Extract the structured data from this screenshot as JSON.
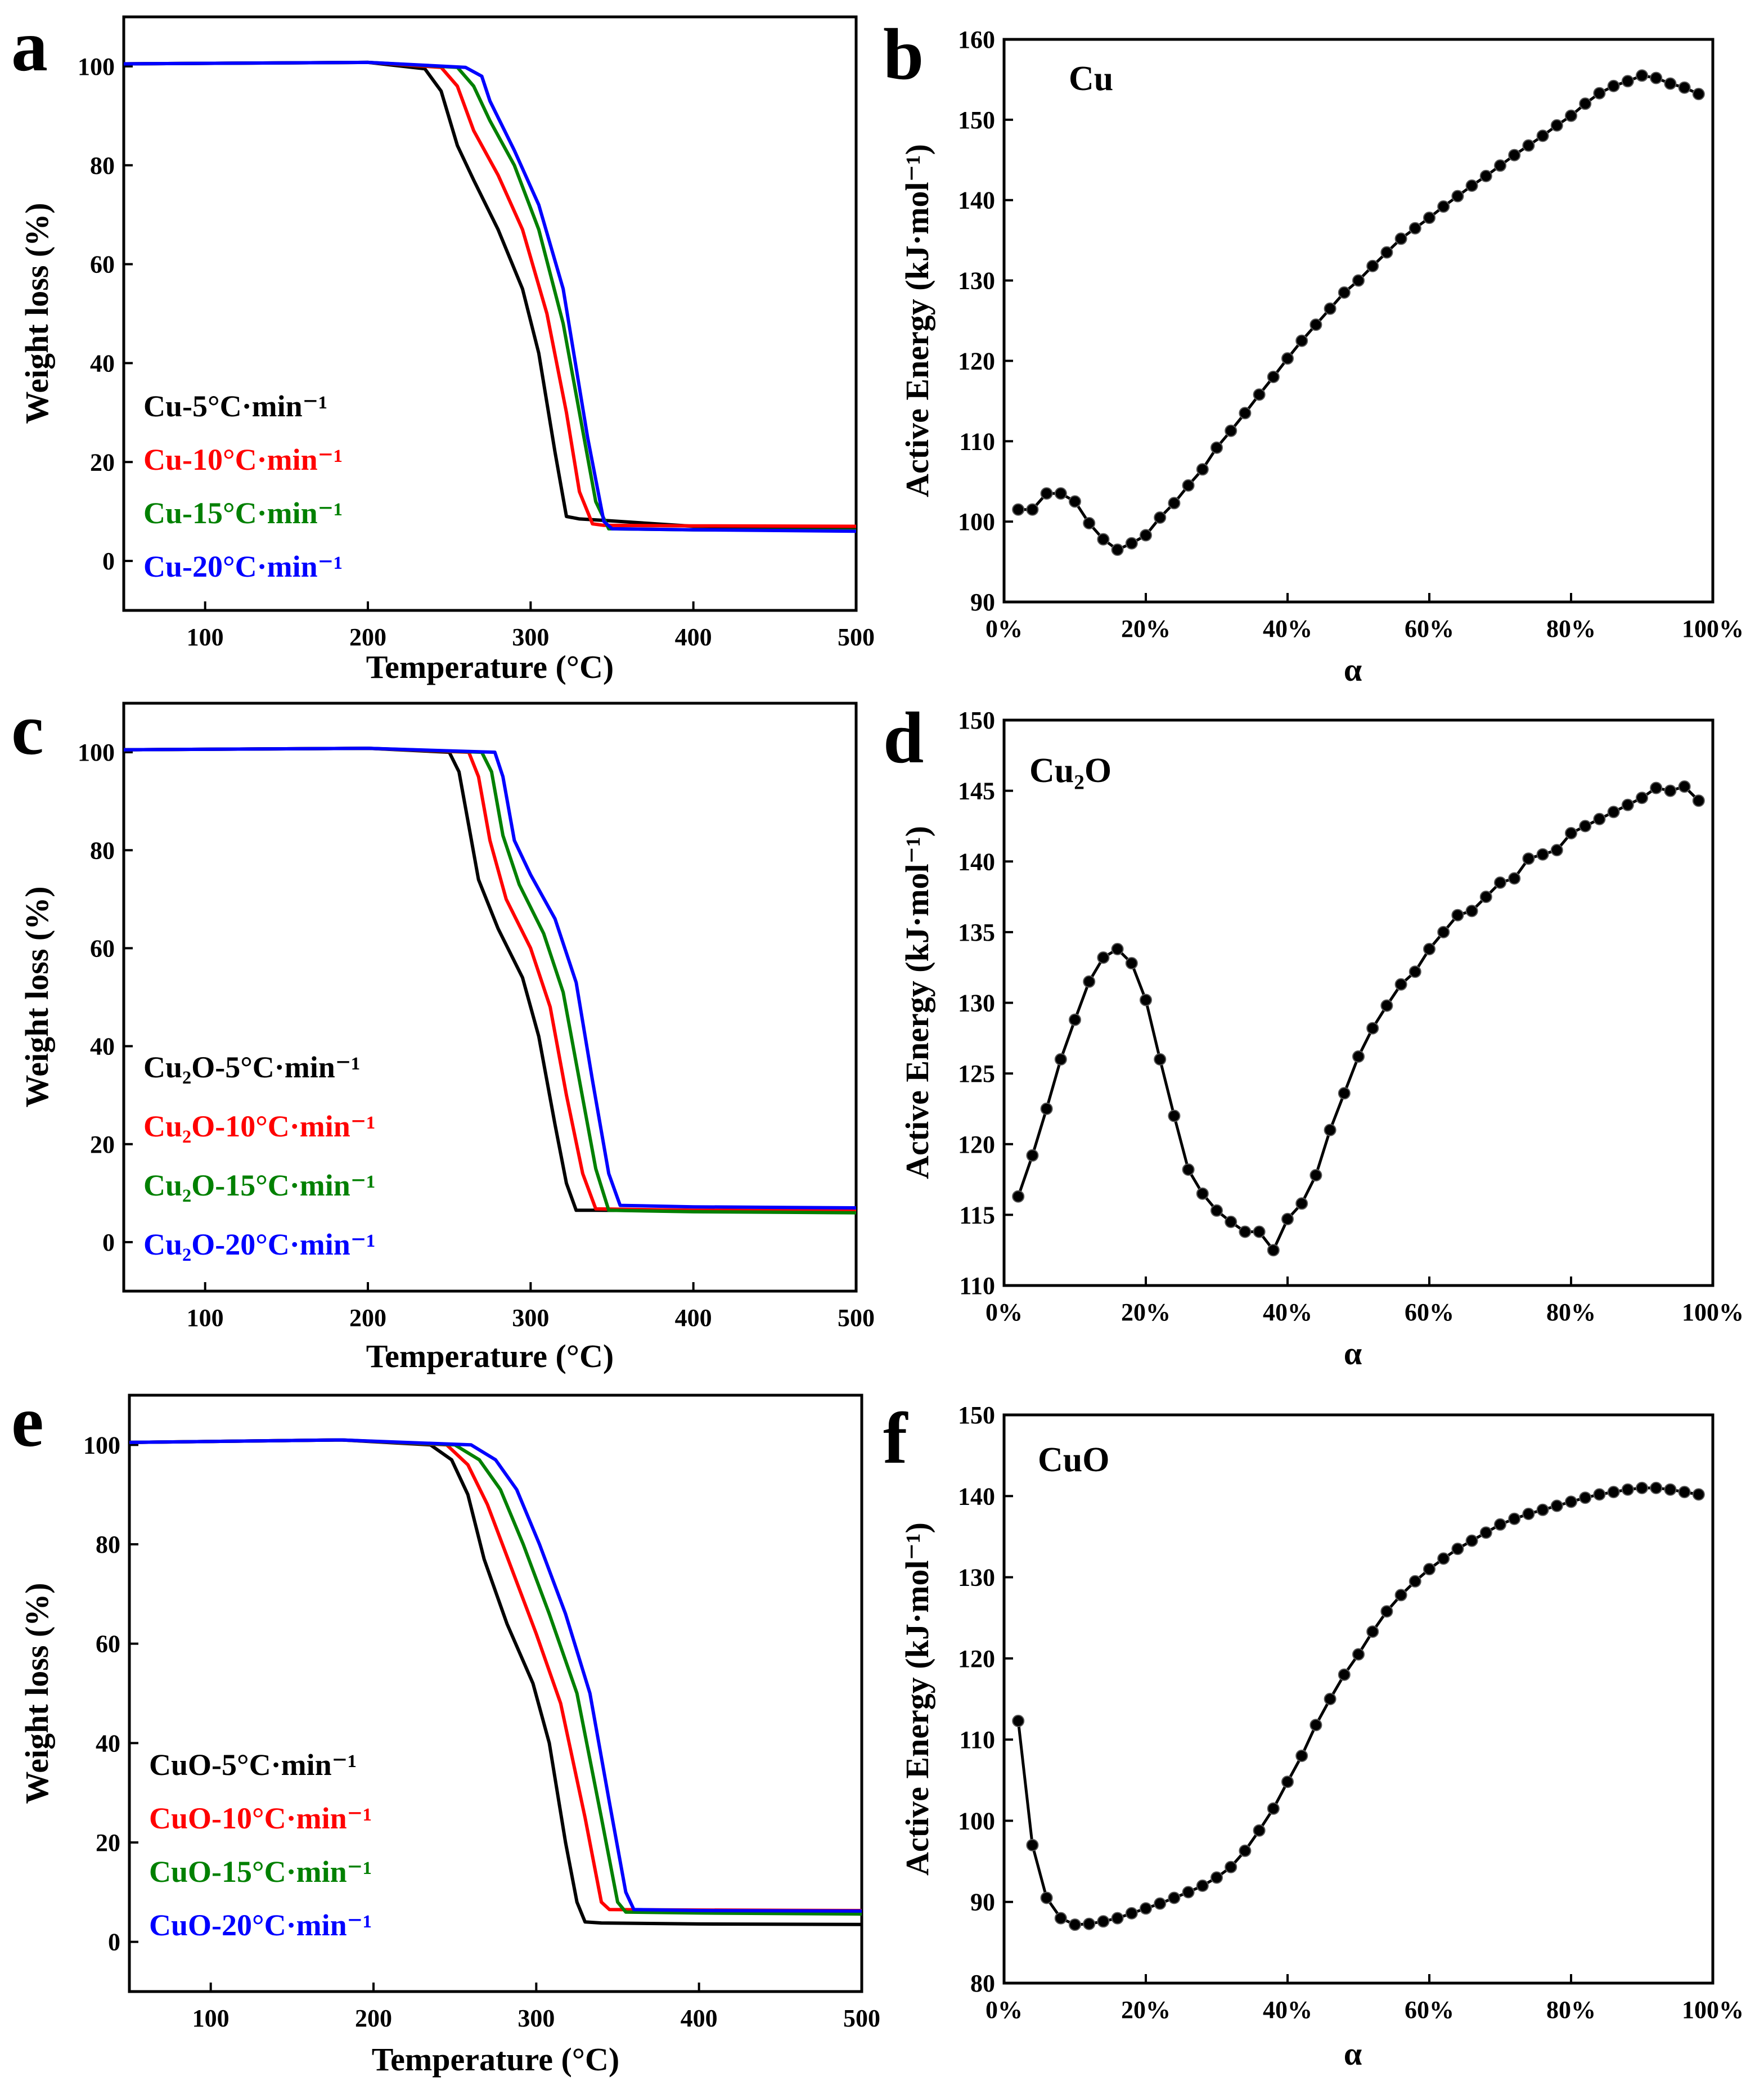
{
  "colors": {
    "rate5": "#000000",
    "rate10": "#ff0000",
    "rate15": "#008000",
    "rate20": "#0000ff"
  },
  "chart_data": [
    {
      "panel": "a",
      "type": "line",
      "xlabel": "Temperature (°C)",
      "ylabel": "Weight loss (%)",
      "xlim": [
        50,
        500
      ],
      "ylim": [
        -10,
        110
      ],
      "xticks": [
        100,
        200,
        300,
        400,
        500
      ],
      "yticks": [
        0,
        20,
        40,
        60,
        80,
        100
      ],
      "legend_position": "lower-left",
      "series": [
        {
          "name": "Cu-5°C·min⁻¹",
          "color": "#000000",
          "x": [
            50,
            200,
            235,
            245,
            255,
            265,
            280,
            295,
            305,
            315,
            322,
            330,
            345,
            400,
            500
          ],
          "y": [
            100.5,
            100.8,
            99.5,
            95,
            84,
            77,
            67,
            55,
            42,
            22,
            9,
            8.5,
            8.2,
            7,
            6.5
          ]
        },
        {
          "name": "Cu-10°C·min⁻¹",
          "color": "#ff0000",
          "x": [
            50,
            200,
            245,
            255,
            265,
            280,
            295,
            310,
            322,
            330,
            338,
            345,
            400,
            500
          ],
          "y": [
            100.5,
            100.8,
            99.8,
            96,
            87,
            78,
            67,
            50,
            30,
            14,
            7.5,
            7.2,
            7.1,
            7
          ]
        },
        {
          "name": "Cu-15°C·min⁻¹",
          "color": "#008000",
          "x": [
            50,
            200,
            255,
            265,
            275,
            290,
            305,
            320,
            330,
            340,
            348,
            400,
            500
          ],
          "y": [
            100.5,
            100.8,
            99.8,
            96,
            89,
            80,
            67,
            48,
            30,
            12,
            6.5,
            6.3,
            6.2
          ]
        },
        {
          "name": "Cu-20°C·min⁻¹",
          "color": "#0000ff",
          "x": [
            50,
            200,
            260,
            270,
            275,
            290,
            305,
            320,
            335,
            345,
            350,
            400,
            500
          ],
          "y": [
            100.5,
            100.8,
            99.8,
            98,
            93,
            83,
            72,
            55,
            25,
            8,
            6.5,
            6.3,
            6
          ]
        }
      ]
    },
    {
      "panel": "b",
      "type": "scatter",
      "annotation": "Cu",
      "xlabel": "α",
      "ylabel": "Active Energy (kJ·mol⁻¹)",
      "xlim": [
        0,
        100
      ],
      "ylim": [
        90,
        160
      ],
      "xticks": [
        "0%",
        "20%",
        "40%",
        "60%",
        "80%",
        "100%"
      ],
      "yticks": [
        90,
        100,
        110,
        120,
        130,
        140,
        150,
        160
      ],
      "x": [
        2,
        4,
        6,
        8,
        10,
        12,
        14,
        16,
        18,
        20,
        22,
        24,
        26,
        28,
        30,
        32,
        34,
        36,
        38,
        40,
        42,
        44,
        46,
        48,
        50,
        52,
        54,
        56,
        58,
        60,
        62,
        64,
        66,
        68,
        70,
        72,
        74,
        76,
        78,
        80,
        82,
        84,
        86,
        88,
        90,
        92,
        94,
        96,
        98
      ],
      "y": [
        101.5,
        101.5,
        103.5,
        103.5,
        102.5,
        99.8,
        97.8,
        96.5,
        97.3,
        98.3,
        100.5,
        102.3,
        104.5,
        106.5,
        109.2,
        111.3,
        113.5,
        115.8,
        118.0,
        120.3,
        122.5,
        124.5,
        126.5,
        128.5,
        130.0,
        131.8,
        133.5,
        135.2,
        136.5,
        137.8,
        139.2,
        140.5,
        141.8,
        143.0,
        144.3,
        145.6,
        146.8,
        148.0,
        149.3,
        150.5,
        152.0,
        153.3,
        154.2,
        154.8,
        155.5,
        155.2,
        154.5,
        154.0,
        153.2
      ]
    },
    {
      "panel": "c",
      "type": "line",
      "xlabel": "Temperature (°C)",
      "ylabel": "Weight loss (%)",
      "xlim": [
        50,
        500
      ],
      "ylim": [
        -10,
        110
      ],
      "xticks": [
        100,
        200,
        300,
        400,
        500
      ],
      "yticks": [
        0,
        20,
        40,
        60,
        80,
        100
      ],
      "legend_position": "lower-left",
      "series": [
        {
          "name": "Cu₂O-5°C·min⁻¹",
          "color": "#000000",
          "x": [
            50,
            200,
            250,
            256,
            262,
            268,
            280,
            295,
            305,
            315,
            322,
            328,
            340,
            400,
            500
          ],
          "y": [
            100.5,
            100.8,
            100,
            96,
            85,
            74,
            64,
            54,
            42,
            24,
            12,
            6.5,
            6.5,
            6.4,
            6.3
          ]
        },
        {
          "name": "Cu₂O-10°C·min⁻¹",
          "color": "#ff0000",
          "x": [
            50,
            200,
            262,
            268,
            275,
            285,
            300,
            312,
            322,
            332,
            340,
            400,
            500
          ],
          "y": [
            100.5,
            100.8,
            100,
            95,
            82,
            70,
            60,
            48,
            30,
            14,
            6.8,
            6.5,
            6.4
          ]
        },
        {
          "name": "Cu₂O-15°C·min⁻¹",
          "color": "#008000",
          "x": [
            50,
            200,
            270,
            276,
            283,
            293,
            308,
            320,
            330,
            340,
            348,
            400,
            500
          ],
          "y": [
            100.5,
            100.8,
            100,
            96,
            83,
            73,
            63,
            51,
            33,
            15,
            6.5,
            6.2,
            6
          ]
        },
        {
          "name": "Cu₂O-20°C·min⁻¹",
          "color": "#0000ff",
          "x": [
            50,
            200,
            278,
            283,
            290,
            300,
            315,
            328,
            338,
            348,
            355,
            400,
            500
          ],
          "y": [
            100.5,
            100.8,
            100,
            95,
            82,
            75,
            66,
            53,
            33,
            14,
            7.5,
            7.2,
            7
          ]
        }
      ]
    },
    {
      "panel": "d",
      "type": "scatter",
      "annotation": "Cu₂O",
      "xlabel": "α",
      "ylabel": "Active Energy (kJ·mol⁻¹)",
      "xlim": [
        0,
        100
      ],
      "ylim": [
        110,
        150
      ],
      "xticks": [
        "0%",
        "20%",
        "40%",
        "60%",
        "80%",
        "100%"
      ],
      "yticks": [
        110,
        115,
        120,
        125,
        130,
        135,
        140,
        145,
        150
      ],
      "x": [
        2,
        4,
        6,
        8,
        10,
        12,
        14,
        16,
        18,
        20,
        22,
        24,
        26,
        28,
        30,
        32,
        34,
        36,
        38,
        40,
        42,
        44,
        46,
        48,
        50,
        52,
        54,
        56,
        58,
        60,
        62,
        64,
        66,
        68,
        70,
        72,
        74,
        76,
        78,
        80,
        82,
        84,
        86,
        88,
        90,
        92,
        94,
        96,
        98
      ],
      "y": [
        116.3,
        119.2,
        122.5,
        126.0,
        128.8,
        131.5,
        133.2,
        133.8,
        132.8,
        130.2,
        126.0,
        122.0,
        118.2,
        116.5,
        115.3,
        114.5,
        113.8,
        113.8,
        112.5,
        114.7,
        115.8,
        117.8,
        121.0,
        123.6,
        126.2,
        128.2,
        129.8,
        131.3,
        132.2,
        133.8,
        135.0,
        136.2,
        136.5,
        137.5,
        138.5,
        138.8,
        140.2,
        140.5,
        140.8,
        142.0,
        142.5,
        143.0,
        143.5,
        144.0,
        144.5,
        145.2,
        145.0,
        145.3,
        144.3
      ]
    },
    {
      "panel": "e",
      "type": "line",
      "xlabel": "Temperature (°C)",
      "ylabel": "Weight loss (%)",
      "xlim": [
        50,
        500
      ],
      "ylim": [
        -10,
        110
      ],
      "xticks": [
        100,
        200,
        300,
        400,
        500
      ],
      "yticks": [
        0,
        20,
        40,
        60,
        80,
        100
      ],
      "legend_position": "lower-left",
      "series": [
        {
          "name": "CuO-5°C·min⁻¹",
          "color": "#000000",
          "x": [
            50,
            180,
            235,
            248,
            258,
            268,
            282,
            298,
            308,
            318,
            325,
            330,
            340,
            400,
            500
          ],
          "y": [
            100.5,
            101,
            100,
            97,
            90,
            77,
            64,
            52,
            40,
            20,
            8,
            4,
            3.8,
            3.6,
            3.5
          ]
        },
        {
          "name": "CuO-10°C·min⁻¹",
          "color": "#ff0000",
          "x": [
            50,
            180,
            245,
            258,
            270,
            285,
            300,
            315,
            330,
            340,
            345,
            400,
            500
          ],
          "y": [
            100.5,
            101,
            100,
            96,
            88,
            75,
            62,
            48,
            25,
            8,
            6.5,
            6.4,
            6.3
          ]
        },
        {
          "name": "CuO-15°C·min⁻¹",
          "color": "#008000",
          "x": [
            50,
            180,
            250,
            265,
            278,
            292,
            308,
            325,
            340,
            350,
            355,
            400,
            500
          ],
          "y": [
            100.5,
            101,
            100,
            97,
            91,
            80,
            66,
            50,
            25,
            8,
            6,
            5.8,
            5.6
          ]
        },
        {
          "name": "CuO-20°C·min⁻¹",
          "color": "#0000ff",
          "x": [
            50,
            180,
            260,
            275,
            288,
            302,
            318,
            333,
            345,
            355,
            360,
            400,
            500
          ],
          "y": [
            100.5,
            101,
            100,
            97,
            91,
            80,
            66,
            50,
            28,
            10,
            6.5,
            6.3,
            6.2
          ]
        }
      ]
    },
    {
      "panel": "f",
      "type": "scatter",
      "annotation": "CuO",
      "xlabel": "α",
      "ylabel": "Active Energy (kJ·mol⁻¹)",
      "xlim": [
        0,
        100
      ],
      "ylim": [
        80,
        150
      ],
      "xticks": [
        "0%",
        "20%",
        "40%",
        "60%",
        "80%",
        "100%"
      ],
      "yticks": [
        80,
        90,
        100,
        110,
        120,
        130,
        140,
        150
      ],
      "x": [
        2,
        4,
        6,
        8,
        10,
        12,
        14,
        16,
        18,
        20,
        22,
        24,
        26,
        28,
        30,
        32,
        34,
        36,
        38,
        40,
        42,
        44,
        46,
        48,
        50,
        52,
        54,
        56,
        58,
        60,
        62,
        64,
        66,
        68,
        70,
        72,
        74,
        76,
        78,
        80,
        82,
        84,
        86,
        88,
        90,
        92,
        94,
        96,
        98
      ],
      "y": [
        112.3,
        97.0,
        90.5,
        88.0,
        87.2,
        87.3,
        87.6,
        88.0,
        88.6,
        89.2,
        89.8,
        90.5,
        91.2,
        92.0,
        93.0,
        94.3,
        96.3,
        98.8,
        101.5,
        104.8,
        108.0,
        111.8,
        115.0,
        118.0,
        120.5,
        123.3,
        125.8,
        127.8,
        129.5,
        131.0,
        132.3,
        133.5,
        134.5,
        135.5,
        136.5,
        137.2,
        137.8,
        138.3,
        138.8,
        139.3,
        139.8,
        140.2,
        140.5,
        140.8,
        141.0,
        141.0,
        140.8,
        140.5,
        140.2
      ]
    }
  ]
}
